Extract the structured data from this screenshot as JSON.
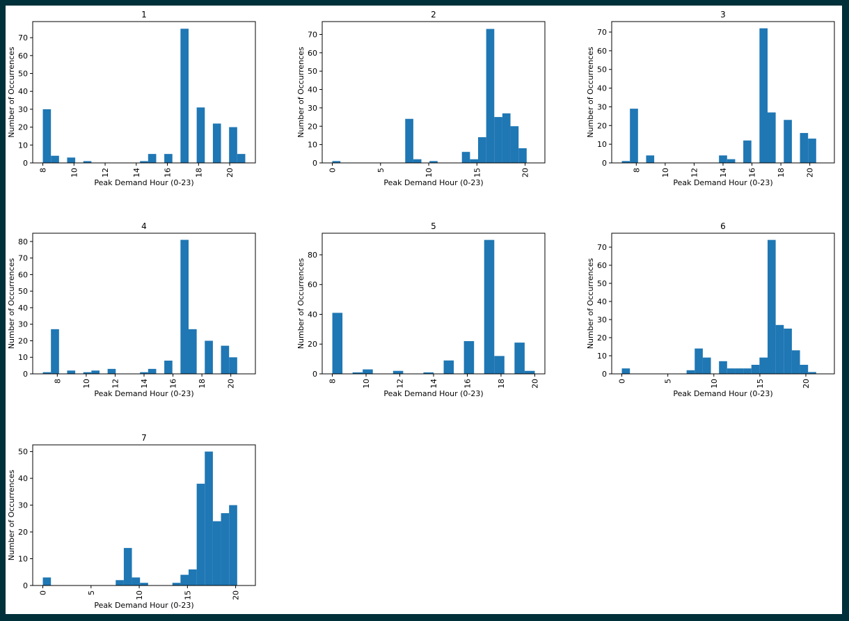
{
  "colors": {
    "bar": "#1f77b4",
    "frame_border": "#00303a",
    "background": "#ffffff"
  },
  "chart_data": [
    {
      "type": "bar",
      "title": "1",
      "xlabel": "Peak Demand Hour (0-23)",
      "ylabel": "Number of Occurrences",
      "xlim": [
        7.35,
        21.65
      ],
      "ylim": [
        0,
        79
      ],
      "xticks": [
        8,
        10,
        12,
        14,
        16,
        18,
        20
      ],
      "yticks": [
        0,
        10,
        20,
        30,
        40,
        50,
        60,
        70
      ],
      "xtick_rotation": -90,
      "bin_width": 0.52,
      "bins": [
        {
          "x": 8.0,
          "value": 30
        },
        {
          "x": 8.52,
          "value": 4
        },
        {
          "x": 9.56,
          "value": 3
        },
        {
          "x": 10.6,
          "value": 1
        },
        {
          "x": 14.24,
          "value": 1
        },
        {
          "x": 14.76,
          "value": 5
        },
        {
          "x": 15.8,
          "value": 5
        },
        {
          "x": 16.84,
          "value": 75
        },
        {
          "x": 17.88,
          "value": 31
        },
        {
          "x": 18.92,
          "value": 22
        },
        {
          "x": 19.96,
          "value": 20
        },
        {
          "x": 20.48,
          "value": 5
        }
      ]
    },
    {
      "type": "bar",
      "title": "2",
      "xlabel": "Peak Demand Hour (0-23)",
      "ylabel": "Number of Occurrences",
      "xlim": [
        -1.05,
        22.05
      ],
      "ylim": [
        0,
        77
      ],
      "xticks": [
        0,
        5,
        10,
        15,
        20
      ],
      "yticks": [
        0,
        10,
        20,
        30,
        40,
        50,
        60,
        70
      ],
      "xtick_rotation": -90,
      "bin_width": 0.84,
      "bins": [
        {
          "x": 0.0,
          "value": 1
        },
        {
          "x": 7.56,
          "value": 24
        },
        {
          "x": 8.4,
          "value": 2
        },
        {
          "x": 10.08,
          "value": 1
        },
        {
          "x": 13.44,
          "value": 6
        },
        {
          "x": 14.28,
          "value": 2
        },
        {
          "x": 15.12,
          "value": 14
        },
        {
          "x": 15.96,
          "value": 73
        },
        {
          "x": 16.8,
          "value": 25
        },
        {
          "x": 17.64,
          "value": 27
        },
        {
          "x": 18.48,
          "value": 20
        },
        {
          "x": 19.32,
          "value": 8
        }
      ]
    },
    {
      "type": "bar",
      "title": "3",
      "xlabel": "Peak Demand Hour (0-23)",
      "ylabel": "Number of Occurrences",
      "xlim": [
        6.3,
        21.7
      ],
      "ylim": [
        0,
        75.6
      ],
      "xticks": [
        8,
        10,
        12,
        14,
        16,
        18,
        20
      ],
      "yticks": [
        0,
        10,
        20,
        30,
        40,
        50,
        60,
        70
      ],
      "xtick_rotation": -90,
      "bin_width": 0.56,
      "bins": [
        {
          "x": 7.0,
          "value": 1
        },
        {
          "x": 7.56,
          "value": 29
        },
        {
          "x": 8.68,
          "value": 4
        },
        {
          "x": 13.72,
          "value": 4
        },
        {
          "x": 14.28,
          "value": 2
        },
        {
          "x": 15.4,
          "value": 12
        },
        {
          "x": 16.52,
          "value": 72
        },
        {
          "x": 17.08,
          "value": 27
        },
        {
          "x": 18.2,
          "value": 23
        },
        {
          "x": 19.32,
          "value": 16
        },
        {
          "x": 19.88,
          "value": 13
        }
      ]
    },
    {
      "type": "bar",
      "title": "4",
      "xlabel": "Peak Demand Hour (0-23)",
      "ylabel": "Number of Occurrences",
      "xlim": [
        6.3,
        21.7
      ],
      "ylim": [
        0,
        85
      ],
      "xticks": [
        8,
        10,
        12,
        14,
        16,
        18,
        20
      ],
      "yticks": [
        0,
        10,
        20,
        30,
        40,
        50,
        60,
        70,
        80
      ],
      "xtick_rotation": -90,
      "bin_width": 0.56,
      "bins": [
        {
          "x": 7.0,
          "value": 1
        },
        {
          "x": 7.56,
          "value": 27
        },
        {
          "x": 8.68,
          "value": 2
        },
        {
          "x": 9.8,
          "value": 1
        },
        {
          "x": 10.36,
          "value": 2
        },
        {
          "x": 11.48,
          "value": 3
        },
        {
          "x": 13.72,
          "value": 1
        },
        {
          "x": 14.28,
          "value": 3
        },
        {
          "x": 15.4,
          "value": 8
        },
        {
          "x": 16.52,
          "value": 81
        },
        {
          "x": 17.08,
          "value": 27
        },
        {
          "x": 18.2,
          "value": 20
        },
        {
          "x": 19.32,
          "value": 17
        },
        {
          "x": 19.88,
          "value": 10
        }
      ]
    },
    {
      "type": "bar",
      "title": "5",
      "xlabel": "Peak Demand Hour (0-23)",
      "ylabel": "Number of Occurrences",
      "xlim": [
        7.4,
        20.6
      ],
      "ylim": [
        0,
        94.5
      ],
      "xticks": [
        8,
        10,
        12,
        14,
        16,
        18,
        20
      ],
      "yticks": [
        0,
        20,
        40,
        60,
        80
      ],
      "xtick_rotation": -90,
      "bin_width": 0.6,
      "bins": [
        {
          "x": 8.0,
          "value": 41
        },
        {
          "x": 9.2,
          "value": 1
        },
        {
          "x": 9.8,
          "value": 3
        },
        {
          "x": 11.6,
          "value": 2
        },
        {
          "x": 13.4,
          "value": 1
        },
        {
          "x": 14.6,
          "value": 9
        },
        {
          "x": 15.8,
          "value": 22
        },
        {
          "x": 17.0,
          "value": 90
        },
        {
          "x": 17.6,
          "value": 12
        },
        {
          "x": 18.8,
          "value": 21
        },
        {
          "x": 19.4,
          "value": 2
        }
      ]
    },
    {
      "type": "bar",
      "title": "6",
      "xlabel": "Peak Demand Hour (0-23)",
      "ylabel": "Number of Occurrences",
      "xlim": [
        -1.1,
        23.1
      ],
      "ylim": [
        0,
        77.7
      ],
      "xticks": [
        0,
        5,
        10,
        15,
        20
      ],
      "yticks": [
        0,
        10,
        20,
        30,
        40,
        50,
        60,
        70
      ],
      "xtick_rotation": -90,
      "bin_width": 0.88,
      "bins": [
        {
          "x": 0.0,
          "value": 3
        },
        {
          "x": 7.04,
          "value": 2
        },
        {
          "x": 7.92,
          "value": 14
        },
        {
          "x": 8.8,
          "value": 9
        },
        {
          "x": 10.56,
          "value": 7
        },
        {
          "x": 11.44,
          "value": 3
        },
        {
          "x": 12.32,
          "value": 3
        },
        {
          "x": 13.2,
          "value": 3
        },
        {
          "x": 14.08,
          "value": 5
        },
        {
          "x": 14.96,
          "value": 9
        },
        {
          "x": 15.84,
          "value": 74
        },
        {
          "x": 16.72,
          "value": 27
        },
        {
          "x": 17.6,
          "value": 25
        },
        {
          "x": 18.48,
          "value": 13
        },
        {
          "x": 19.36,
          "value": 5
        },
        {
          "x": 20.24,
          "value": 1
        }
      ]
    },
    {
      "type": "bar",
      "title": "7",
      "xlabel": "Peak Demand Hour (0-23)",
      "ylabel": "Number of Occurrences",
      "xlim": [
        -1.05,
        22.05
      ],
      "ylim": [
        0,
        52.5
      ],
      "xticks": [
        0,
        5,
        10,
        15,
        20
      ],
      "yticks": [
        0,
        10,
        20,
        30,
        40,
        50
      ],
      "xtick_rotation": -90,
      "bin_width": 0.84,
      "bins": [
        {
          "x": 0.0,
          "value": 3
        },
        {
          "x": 7.56,
          "value": 2
        },
        {
          "x": 8.4,
          "value": 14
        },
        {
          "x": 9.24,
          "value": 3
        },
        {
          "x": 10.08,
          "value": 1
        },
        {
          "x": 13.44,
          "value": 1
        },
        {
          "x": 14.28,
          "value": 4
        },
        {
          "x": 15.12,
          "value": 6
        },
        {
          "x": 15.96,
          "value": 38
        },
        {
          "x": 16.8,
          "value": 50
        },
        {
          "x": 17.64,
          "value": 24
        },
        {
          "x": 18.48,
          "value": 27
        },
        {
          "x": 19.32,
          "value": 30
        }
      ]
    }
  ]
}
